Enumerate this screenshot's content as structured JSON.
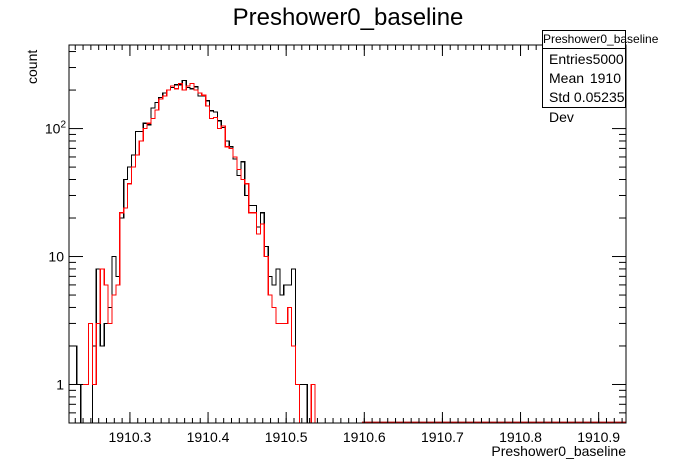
{
  "chart_data": {
    "type": "histogram",
    "title": "Preshower0_baseline",
    "xlabel": "Preshower0_baseline",
    "ylabel": "count",
    "xlim": [
      1910.222,
      1910.935
    ],
    "ylim": [
      0.5,
      450
    ],
    "yscale": "log",
    "bin_width": 0.005,
    "x_ticks": [
      "1910.3",
      "1910.4",
      "1910.5",
      "1910.6",
      "1910.7",
      "1910.8",
      "1910.9"
    ],
    "y_ticks": [
      {
        "value": 1,
        "base": "1",
        "exp": ""
      },
      {
        "value": 10,
        "base": "10",
        "exp": ""
      },
      {
        "value": 100,
        "base": "10",
        "exp": "2"
      }
    ],
    "series": [
      {
        "color": "#000000",
        "x": [
          1910.222,
          1910.227,
          1910.232,
          1910.237,
          1910.242,
          1910.247,
          1910.252,
          1910.257,
          1910.262,
          1910.267,
          1910.272,
          1910.277,
          1910.282,
          1910.287,
          1910.292,
          1910.297,
          1910.302,
          1910.307,
          1910.312,
          1910.317,
          1910.322,
          1910.327,
          1910.332,
          1910.337,
          1910.342,
          1910.347,
          1910.352,
          1910.357,
          1910.362,
          1910.367,
          1910.372,
          1910.377,
          1910.382,
          1910.387,
          1910.392,
          1910.397,
          1910.402,
          1910.407,
          1910.412,
          1910.417,
          1910.422,
          1910.427,
          1910.432,
          1910.437,
          1910.442,
          1910.447,
          1910.452,
          1910.457,
          1910.462,
          1910.467,
          1910.472,
          1910.477,
          1910.482,
          1910.487,
          1910.492,
          1910.497,
          1910.502,
          1910.507,
          1910.512,
          1910.517,
          1910.522,
          1910.527,
          1910.532,
          1910.537,
          1910.542,
          1910.547,
          1910.552,
          1910.557,
          1910.562,
          1910.567,
          1910.572,
          1910.577,
          1910.582,
          1910.587,
          1910.592
        ],
        "values": [
          2,
          2,
          1,
          0,
          0,
          0,
          2,
          8,
          2,
          3,
          4,
          10,
          7,
          20,
          40,
          50,
          62,
          95,
          95,
          110,
          107,
          145,
          160,
          175,
          190,
          200,
          210,
          220,
          220,
          238,
          210,
          205,
          212,
          180,
          180,
          165,
          138,
          135,
          115,
          102,
          80,
          72,
          58,
          43,
          55,
          30,
          25,
          25,
          17,
          22,
          12,
          7,
          6,
          8,
          5,
          6,
          6,
          8,
          1,
          1,
          1,
          0,
          0,
          0,
          0,
          0,
          0,
          0,
          0,
          0,
          0,
          0,
          0,
          0,
          0
        ]
      },
      {
        "color": "#ff0000",
        "x": [
          1910.222,
          1910.227,
          1910.232,
          1910.237,
          1910.242,
          1910.247,
          1910.252,
          1910.257,
          1910.262,
          1910.267,
          1910.272,
          1910.277,
          1910.282,
          1910.287,
          1910.292,
          1910.297,
          1910.302,
          1910.307,
          1910.312,
          1910.317,
          1910.322,
          1910.327,
          1910.332,
          1910.337,
          1910.342,
          1910.347,
          1910.352,
          1910.357,
          1910.362,
          1910.367,
          1910.372,
          1910.377,
          1910.382,
          1910.387,
          1910.392,
          1910.397,
          1910.402,
          1910.407,
          1910.412,
          1910.417,
          1910.422,
          1910.427,
          1910.432,
          1910.437,
          1910.442,
          1910.447,
          1910.452,
          1910.457,
          1910.462,
          1910.467,
          1910.472,
          1910.477,
          1910.482,
          1910.487,
          1910.492,
          1910.497,
          1910.502,
          1910.507,
          1910.512,
          1910.517,
          1910.522,
          1910.527,
          1910.532,
          1910.537,
          1910.542,
          1910.547,
          1910.552,
          1910.557,
          1910.562,
          1910.567,
          1910.572,
          1910.577,
          1910.582,
          1910.587,
          1910.592
        ],
        "values": [
          1,
          1,
          1,
          1,
          1,
          3,
          1,
          3,
          8,
          6,
          3,
          5,
          6,
          22,
          24,
          37,
          50,
          62,
          80,
          100,
          110,
          120,
          140,
          170,
          180,
          200,
          215,
          205,
          225,
          200,
          215,
          225,
          200,
          190,
          182,
          150,
          120,
          122,
          100,
          105,
          72,
          70,
          60,
          48,
          40,
          37,
          22,
          22,
          15,
          18,
          10,
          5,
          4,
          3,
          3,
          3,
          4,
          2,
          1,
          0,
          0,
          0,
          1,
          0,
          0,
          0,
          0,
          0,
          0,
          0,
          0,
          0,
          0,
          0,
          0
        ]
      }
    ]
  },
  "stats_box": {
    "title": "Preshower0_baseline",
    "rows": [
      {
        "label": "Entries",
        "value": "5000"
      },
      {
        "label": "Mean",
        "value": "1910"
      },
      {
        "label": "Std Dev",
        "value": "0.05235"
      }
    ]
  }
}
